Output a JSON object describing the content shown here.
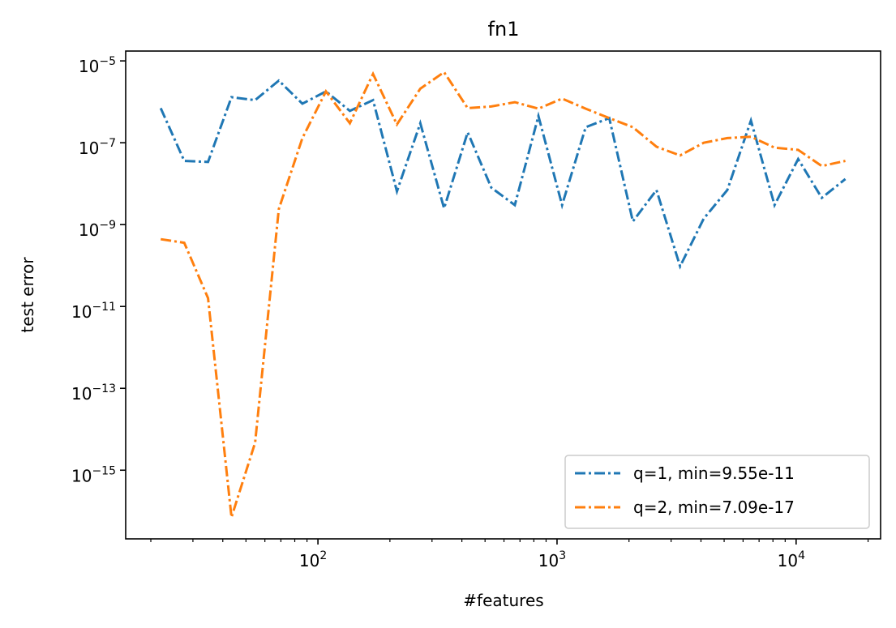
{
  "chart_data": {
    "type": "line",
    "title": "fn1",
    "xlabel": "#features",
    "ylabel": "test error",
    "xscale": "log",
    "yscale": "log",
    "legend": "lower right",
    "x": [
      22,
      27.6,
      34.7,
      43.5,
      54.6,
      68.6,
      86.1,
      108,
      136,
      170,
      214,
      268,
      337,
      423,
      531,
      666,
      836,
      1050,
      1318,
      1654,
      2076,
      2606,
      3272,
      4107,
      5156,
      6472,
      8124,
      10198,
      12802,
      16070
    ],
    "series": [
      {
        "name": "q=1, min=9.55e-11",
        "color": "#1f77b4",
        "values": [
          7e-07,
          3.6e-08,
          3.4e-08,
          1.3e-06,
          1.1e-06,
          3.3e-06,
          9e-07,
          1.8e-06,
          6e-07,
          1.1e-06,
          6.5e-09,
          3e-07,
          2.5e-09,
          1.8e-07,
          8e-09,
          3e-09,
          4.5e-07,
          3e-09,
          2.4e-07,
          4e-07,
          1.2e-09,
          7e-09,
          9.55e-11,
          1.4e-09,
          7e-09,
          3.5e-07,
          3e-09,
          4e-08,
          4.5e-09,
          1.3e-08
        ]
      },
      {
        "name": "q=2, min=7.09e-17",
        "color": "#ff7f0e",
        "values": [
          4.4e-10,
          3.6e-10,
          1.6e-11,
          7.09e-17,
          4.7e-15,
          2.4e-09,
          1.3e-07,
          1.8e-06,
          3e-07,
          4.8e-06,
          2.8e-07,
          2.1e-06,
          5.3e-06,
          7e-07,
          7.7e-07,
          9.8e-07,
          6.8e-07,
          1.2e-06,
          6.8e-07,
          4e-07,
          2.4e-07,
          8e-08,
          4.9e-08,
          1e-07,
          1.3e-07,
          1.4e-07,
          7.6e-08,
          6.7e-08,
          2.7e-08,
          3.6e-08
        ]
      }
    ],
    "xlim": [
      15.7,
      22560
    ],
    "ylim": [
      1.74e-05,
      2.1e-17
    ],
    "xticks": [
      {
        "value": 100,
        "label": "102"
      },
      {
        "value": 1000,
        "label": "103"
      },
      {
        "value": 10000,
        "label": "104"
      }
    ],
    "xminorticks": [
      20,
      30,
      40,
      50,
      60,
      70,
      80,
      90,
      200,
      300,
      400,
      500,
      600,
      700,
      800,
      900,
      2000,
      3000,
      4000,
      5000,
      6000,
      7000,
      8000,
      9000,
      20000
    ],
    "yticks": [
      {
        "value": 1e-05,
        "label": "10−5"
      },
      {
        "value": 1e-07,
        "label": "10−7"
      },
      {
        "value": 1e-09,
        "label": "10−9"
      },
      {
        "value": 1e-11,
        "label": "10−11"
      },
      {
        "value": 1e-13,
        "label": "10−13"
      },
      {
        "value": 1e-15,
        "label": "10−15"
      }
    ]
  }
}
